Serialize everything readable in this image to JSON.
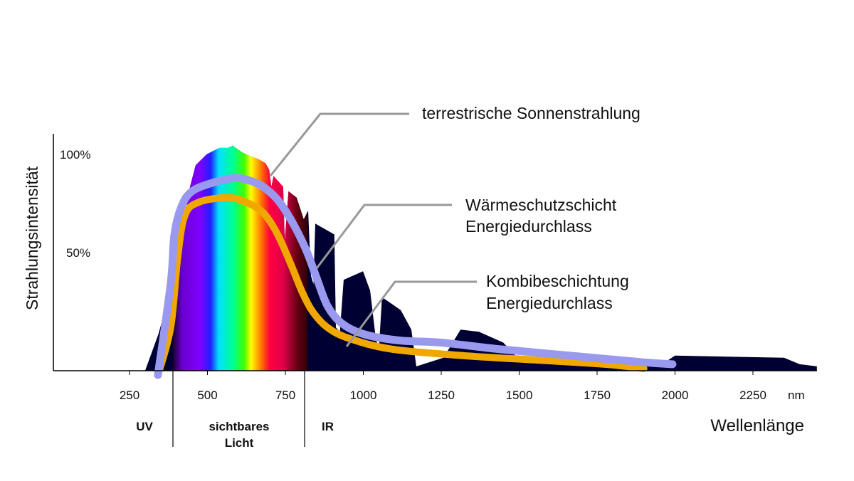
{
  "chart_data": {
    "type": "area",
    "ylabel": "Strahlungsintensität",
    "xlabel": "Wellenlänge",
    "x_unit": "nm",
    "xlim": [
      6,
      2455
    ],
    "ylim": [
      0,
      105
    ],
    "x_ticks": [
      250,
      500,
      750,
      1000,
      1250,
      1500,
      1750,
      2000,
      2250
    ],
    "y_tick_labels": [
      {
        "value": 100,
        "label": "100%"
      },
      {
        "value": 50,
        "label": "50%"
      }
    ],
    "regions": [
      {
        "label": "UV",
        "from": 250,
        "to": 390
      },
      {
        "label_line1": "sichtbares",
        "label_line2": "Licht",
        "from": 390,
        "to": 815
      },
      {
        "label": "IR",
        "from": 815,
        "to": 2455
      }
    ],
    "series": [
      {
        "name": "terrestrische Sonnenstrahlung",
        "color": "#000033",
        "points": [
          [
            300,
            0
          ],
          [
            343,
            17
          ],
          [
            366,
            29
          ],
          [
            389,
            33
          ],
          [
            421,
            66
          ],
          [
            444,
            85
          ],
          [
            462,
            95
          ],
          [
            497,
            100
          ],
          [
            538,
            103
          ],
          [
            565,
            103
          ],
          [
            581,
            104
          ],
          [
            611,
            101
          ],
          [
            640,
            99
          ],
          [
            661,
            98
          ],
          [
            686,
            96
          ],
          [
            698,
            93
          ],
          [
            705,
            85
          ],
          [
            712,
            90
          ],
          [
            743,
            85
          ],
          [
            748,
            60
          ],
          [
            760,
            83
          ],
          [
            786,
            80
          ],
          [
            809,
            70
          ],
          [
            823,
            74
          ],
          [
            832,
            44
          ],
          [
            840,
            40
          ],
          [
            846,
            68
          ],
          [
            907,
            63
          ],
          [
            912,
            20
          ],
          [
            925,
            18
          ],
          [
            937,
            42
          ],
          [
            999,
            46
          ],
          [
            1022,
            37
          ],
          [
            1040,
            15
          ],
          [
            1050,
            10
          ],
          [
            1060,
            34
          ],
          [
            1120,
            28
          ],
          [
            1154,
            19
          ],
          [
            1170,
            2
          ],
          [
            1257,
            6
          ],
          [
            1312,
            19
          ],
          [
            1371,
            18
          ],
          [
            1449,
            13
          ],
          [
            1494,
            6
          ],
          [
            1631,
            7
          ],
          [
            1860,
            6
          ],
          [
            1912,
            4
          ],
          [
            1969,
            4
          ],
          [
            2000,
            7
          ],
          [
            2350,
            6
          ],
          [
            2400,
            3
          ],
          [
            2455,
            2
          ],
          [
            2455,
            0
          ]
        ]
      },
      {
        "name": "Kombibeschichtung Energiedurchlass",
        "color": "#f0a800",
        "points": [
          [
            341,
            -2
          ],
          [
            382,
            20
          ],
          [
            405,
            53
          ],
          [
            428,
            72
          ],
          [
            474,
            78
          ],
          [
            565,
            80
          ],
          [
            622,
            78
          ],
          [
            679,
            73
          ],
          [
            725,
            63
          ],
          [
            771,
            48
          ],
          [
            805,
            36
          ],
          [
            839,
            27
          ],
          [
            885,
            20
          ],
          [
            953,
            15
          ],
          [
            1090,
            10
          ],
          [
            1318,
            7
          ],
          [
            1547,
            5
          ],
          [
            1775,
            3
          ],
          [
            1900,
            1
          ]
        ]
      },
      {
        "name": "Wärmeschutzschicht Energiedurchlass",
        "color": "#9999f0",
        "points": [
          [
            341,
            -2
          ],
          [
            382,
            40
          ],
          [
            394,
            63
          ],
          [
            417,
            76
          ],
          [
            451,
            83
          ],
          [
            519,
            87
          ],
          [
            588,
            89
          ],
          [
            634,
            88
          ],
          [
            679,
            85
          ],
          [
            725,
            79
          ],
          [
            771,
            69
          ],
          [
            816,
            56
          ],
          [
            850,
            43
          ],
          [
            885,
            30
          ],
          [
            930,
            22
          ],
          [
            999,
            17
          ],
          [
            1113,
            14
          ],
          [
            1250,
            13
          ],
          [
            1433,
            10
          ],
          [
            1661,
            7
          ],
          [
            1889,
            4
          ],
          [
            1992,
            3
          ]
        ]
      }
    ],
    "annotations": {
      "sun": "terrestrische Sonnenstrahlung",
      "waerme_1": "Wärmeschutzschicht",
      "waerme_2": "Energiedurchlass",
      "kombi_1": "Kombibeschichtung",
      "kombi_2": "Energiedurchlass"
    }
  }
}
